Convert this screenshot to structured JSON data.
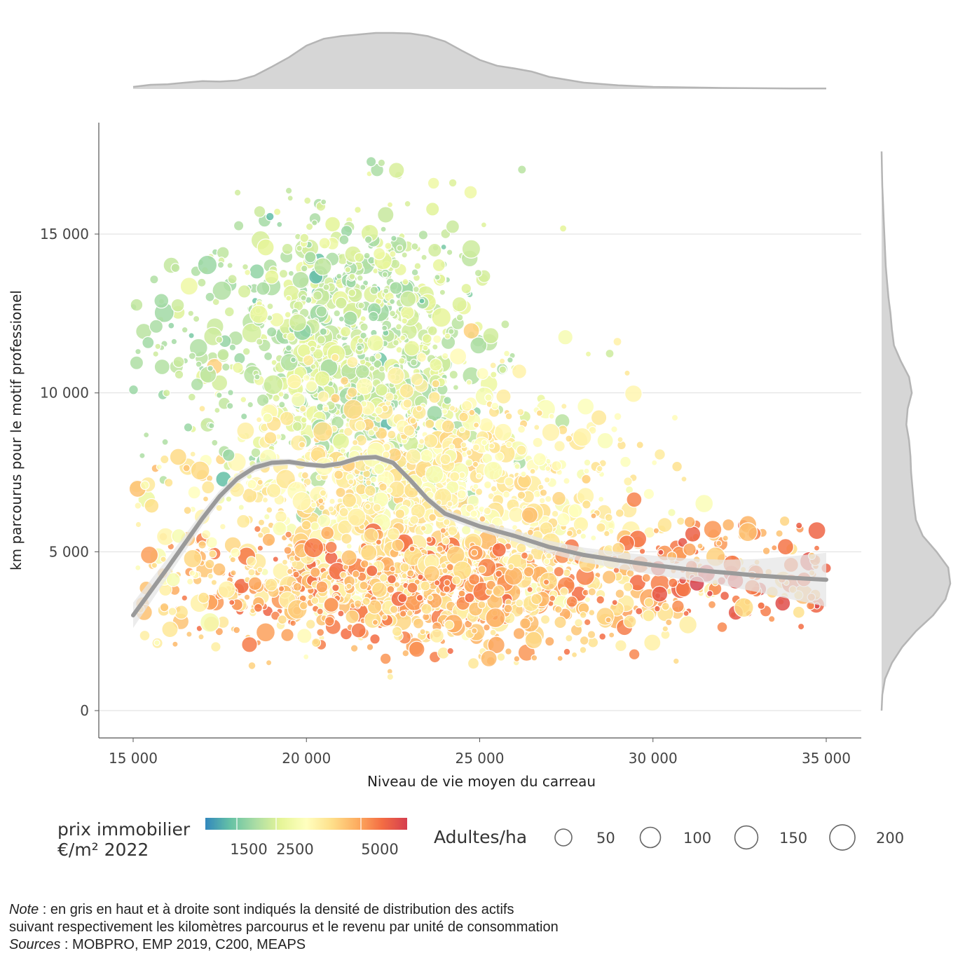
{
  "chart_data": {
    "type": "scatter",
    "xlabel": "Niveau de vie moyen du carreau",
    "ylabel": "km parcourus pour le motif professionel",
    "xlim": [
      14000,
      36000
    ],
    "ylim": [
      -600,
      18400
    ],
    "x_ticks": [
      {
        "value": 15000,
        "label": "15 000"
      },
      {
        "value": 20000,
        "label": "20 000"
      },
      {
        "value": 25000,
        "label": "25 000"
      },
      {
        "value": 30000,
        "label": "30 000"
      },
      {
        "value": 35000,
        "label": "35 000"
      }
    ],
    "y_ticks": [
      {
        "value": 0,
        "label": "0"
      },
      {
        "value": 5000,
        "label": "5 000"
      },
      {
        "value": 10000,
        "label": "10 000"
      },
      {
        "value": 15000,
        "label": "15 000"
      }
    ],
    "grid": "horizontal",
    "trend": {
      "name": "lissage",
      "x": [
        15000,
        16000,
        17000,
        17500,
        18000,
        18500,
        19000,
        19500,
        20000,
        20500,
        21000,
        21500,
        22000,
        22500,
        23000,
        23500,
        24000,
        25000,
        26000,
        27000,
        28000,
        29000,
        30000,
        31000,
        32000,
        33000,
        34000,
        35000
      ],
      "y": [
        3000,
        4500,
        6050,
        6750,
        7300,
        7650,
        7800,
        7830,
        7750,
        7700,
        7780,
        7950,
        7980,
        7800,
        7250,
        6650,
        6200,
        5800,
        5500,
        5150,
        4900,
        4730,
        4580,
        4450,
        4350,
        4250,
        4180,
        4120
      ],
      "band_halfwidth": [
        400,
        300,
        220,
        180,
        150,
        140,
        120,
        100,
        90,
        90,
        90,
        90,
        90,
        100,
        110,
        120,
        140,
        160,
        180,
        200,
        230,
        260,
        300,
        340,
        400,
        520,
        680,
        850
      ],
      "color": "#9a9a9a",
      "band_color": "#e6e6e6"
    },
    "color_scale": {
      "title_line1": "prix immobilier",
      "title_line2": "€/m² 2022",
      "labels": [
        "1500",
        "2500",
        "5000"
      ],
      "colors": [
        "#3288bd",
        "#66c2a5",
        "#abdda4",
        "#e6f598",
        "#ffffbf",
        "#fee08b",
        "#fdae61",
        "#f46d43",
        "#d53e4f"
      ]
    },
    "size_scale": {
      "title": "Adultes/ha",
      "values": [
        50,
        100,
        150,
        200
      ]
    },
    "marginal_top": {
      "x": [
        15000,
        15500,
        16000,
        16500,
        17000,
        17500,
        18000,
        18500,
        19000,
        19500,
        20000,
        20500,
        21000,
        21500,
        22000,
        22500,
        23000,
        23500,
        24000,
        24500,
        25000,
        25500,
        26000,
        26500,
        27000,
        28000,
        29000,
        30000,
        31000,
        32000,
        33000,
        34000,
        35000
      ],
      "density": [
        0.04,
        0.08,
        0.09,
        0.12,
        0.15,
        0.14,
        0.16,
        0.25,
        0.42,
        0.6,
        0.82,
        0.95,
        1.0,
        1.03,
        1.06,
        1.06,
        1.05,
        1.0,
        0.9,
        0.72,
        0.55,
        0.44,
        0.39,
        0.33,
        0.23,
        0.12,
        0.07,
        0.04,
        0.03,
        0.02,
        0.015,
        0.01,
        0.01
      ],
      "color": "#d6d6d6",
      "line": "#b5b5b5"
    },
    "marginal_right": {
      "y": [
        0,
        500,
        1000,
        1500,
        2000,
        2500,
        3000,
        3500,
        4000,
        4500,
        5000,
        5500,
        6000,
        6500,
        7000,
        7500,
        8000,
        8500,
        9000,
        9500,
        10000,
        10500,
        11000,
        11500,
        12000,
        12500,
        13000,
        13500,
        14000,
        14500,
        15000,
        15500,
        16000,
        16500,
        17000,
        17600
      ],
      "density": [
        0.0,
        0.01,
        0.05,
        0.15,
        0.3,
        0.5,
        0.75,
        0.93,
        1.0,
        0.97,
        0.8,
        0.6,
        0.5,
        0.47,
        0.45,
        0.43,
        0.42,
        0.4,
        0.36,
        0.38,
        0.44,
        0.4,
        0.28,
        0.18,
        0.15,
        0.13,
        0.1,
        0.08,
        0.06,
        0.05,
        0.04,
        0.03,
        0.02,
        0.01,
        0.005,
        0.0
      ],
      "color": "#d6d6d6",
      "line": "#b5b5b5"
    }
  },
  "note": {
    "note_label": "Note",
    "note_line1": " : en gris en haut et à droite sont indiqués la densité de distribution des actifs",
    "note_line2": "suivant respectivement les kilomètres parcourus et le revenu par unité de consommation",
    "sources_label": "Sources",
    "sources_text": " : MOBPRO, EMP 2019, C200, MEAPS"
  }
}
